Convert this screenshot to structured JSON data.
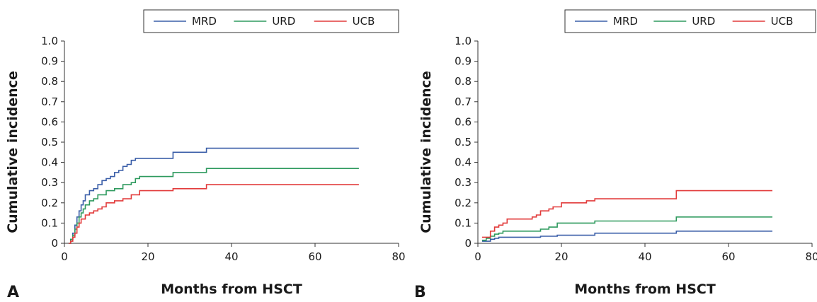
{
  "chart_data": [
    {
      "type": "line",
      "panel_label": "A",
      "xlabel": "Months from HSCT",
      "ylabel": "Cumulative incidence",
      "xlim": [
        0,
        80
      ],
      "ylim": [
        0,
        1.0
      ],
      "x_ticks": [
        0,
        20,
        40,
        60,
        80
      ],
      "x_tick_labels": [
        "0",
        "20",
        "40",
        "60",
        "80"
      ],
      "y_ticks": [
        0,
        0.1,
        0.2,
        0.3,
        0.4,
        0.5,
        0.6,
        0.7,
        0.8,
        0.9,
        1.0
      ],
      "y_tick_labels": [
        "0",
        "0.1",
        "0.2",
        "0.3",
        "0.4",
        "0.5",
        "0.6",
        "0.7",
        "0.8",
        "0.9",
        "1.0"
      ],
      "legend_position": "top-right",
      "step": true,
      "series": [
        {
          "name": "MRD",
          "color": "#3a5ea8",
          "x": [
            1,
            1.5,
            2,
            2.5,
            3,
            3.5,
            4,
            4.5,
            5,
            6,
            7,
            8,
            9,
            10,
            11,
            12,
            13,
            14,
            15,
            16,
            17,
            18,
            20,
            26,
            30,
            34,
            70.5
          ],
          "y": [
            0,
            0.02,
            0.05,
            0.09,
            0.13,
            0.16,
            0.19,
            0.21,
            0.24,
            0.26,
            0.27,
            0.29,
            0.31,
            0.32,
            0.33,
            0.35,
            0.36,
            0.38,
            0.39,
            0.41,
            0.42,
            0.42,
            0.42,
            0.45,
            0.45,
            0.47,
            0.47
          ]
        },
        {
          "name": "URD",
          "color": "#2e9a5e",
          "x": [
            1,
            1.5,
            2,
            2.5,
            3,
            3.5,
            4,
            4.5,
            5,
            6,
            7,
            8,
            10,
            12,
            14,
            16,
            17,
            18,
            26,
            34,
            70.5
          ],
          "y": [
            0,
            0.02,
            0.04,
            0.07,
            0.1,
            0.13,
            0.15,
            0.17,
            0.19,
            0.21,
            0.22,
            0.24,
            0.26,
            0.27,
            0.29,
            0.3,
            0.32,
            0.33,
            0.35,
            0.37,
            0.37
          ]
        },
        {
          "name": "UCB",
          "color": "#e23b3b",
          "x": [
            1,
            1.5,
            2,
            2.5,
            3,
            3.5,
            4,
            5,
            6,
            7,
            8,
            9,
            10,
            12,
            14,
            16,
            18,
            26,
            34,
            70.5
          ],
          "y": [
            0,
            0.01,
            0.03,
            0.05,
            0.08,
            0.1,
            0.12,
            0.14,
            0.15,
            0.16,
            0.17,
            0.18,
            0.2,
            0.21,
            0.22,
            0.24,
            0.26,
            0.27,
            0.29,
            0.29
          ]
        }
      ]
    },
    {
      "type": "line",
      "panel_label": "B",
      "xlabel": "Months from HSCT",
      "ylabel": "Cumulative incidence",
      "xlim": [
        0,
        80
      ],
      "ylim": [
        0,
        1.0
      ],
      "x_ticks": [
        0,
        20,
        40,
        60,
        80
      ],
      "x_tick_labels": [
        "0",
        "20",
        "40",
        "60",
        "80"
      ],
      "y_ticks": [
        0,
        0.1,
        0.2,
        0.3,
        0.4,
        0.5,
        0.6,
        0.7,
        0.8,
        0.9,
        1.0
      ],
      "y_tick_labels": [
        "0",
        "0.1",
        "0.2",
        "0.3",
        "0.4",
        "0.5",
        "0.6",
        "0.7",
        "0.8",
        "0.9",
        "1.0"
      ],
      "legend_position": "top-right",
      "step": true,
      "series": [
        {
          "name": "MRD",
          "color": "#3a5ea8",
          "x": [
            1,
            3,
            4,
            5,
            15,
            19,
            28,
            47.5,
            70.5
          ],
          "y": [
            0.01,
            0.02,
            0.025,
            0.03,
            0.035,
            0.04,
            0.05,
            0.06,
            0.06
          ]
        },
        {
          "name": "URD",
          "color": "#2e9a5e",
          "x": [
            1,
            2,
            3,
            4,
            5,
            6,
            15,
            17,
            19,
            28,
            47.5,
            70.5
          ],
          "y": [
            0.015,
            0.025,
            0.035,
            0.045,
            0.05,
            0.06,
            0.07,
            0.08,
            0.1,
            0.11,
            0.13,
            0.13
          ]
        },
        {
          "name": "UCB",
          "color": "#e23b3b",
          "x": [
            1,
            3,
            4,
            5,
            6,
            7,
            13,
            14,
            15,
            17,
            18,
            20,
            26,
            28,
            47.5,
            70.5
          ],
          "y": [
            0.03,
            0.06,
            0.08,
            0.09,
            0.1,
            0.12,
            0.13,
            0.14,
            0.16,
            0.17,
            0.18,
            0.2,
            0.21,
            0.22,
            0.26,
            0.26
          ]
        }
      ]
    }
  ]
}
